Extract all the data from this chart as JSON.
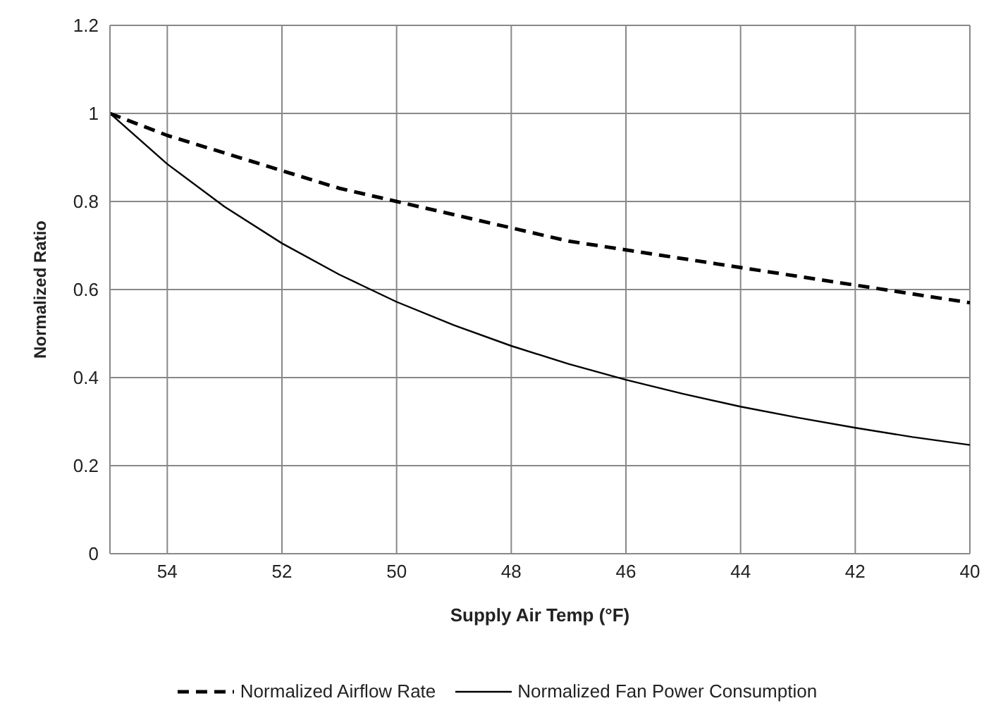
{
  "chart_data": {
    "type": "line",
    "xlabel": "Supply Air Temp (°F)",
    "ylabel": "Normalized Ratio",
    "x": [
      55,
      54,
      53,
      52,
      51,
      50,
      49,
      48,
      47,
      46,
      45,
      44,
      43,
      42,
      41,
      40
    ],
    "series": [
      {
        "name": "Normalized Airflow Rate",
        "color": "#000000",
        "line_style": "dashed",
        "values": [
          1,
          0.95,
          0.91,
          0.87,
          0.83,
          0.8,
          0.77,
          0.74,
          0.71,
          0.69,
          0.67,
          0.65,
          0.63,
          0.61,
          0.59,
          0.57
        ]
      },
      {
        "name": "Normalized Fan Power Consumption",
        "color": "#000000",
        "line_style": "solid",
        "values": [
          1,
          0.885,
          0.788,
          0.705,
          0.634,
          0.572,
          0.519,
          0.472,
          0.431,
          0.395,
          0.363,
          0.334,
          0.309,
          0.286,
          0.265,
          0.247
        ]
      }
    ],
    "xlim": [
      55,
      40
    ],
    "xticks": [
      54,
      52,
      50,
      48,
      46,
      44,
      42,
      40
    ],
    "ylim": [
      0,
      1.2
    ],
    "yticks": [
      0,
      0.2,
      0.4,
      0.6,
      0.8,
      1,
      1.2
    ],
    "grid": true,
    "legend": "bottom",
    "marker": "none"
  }
}
